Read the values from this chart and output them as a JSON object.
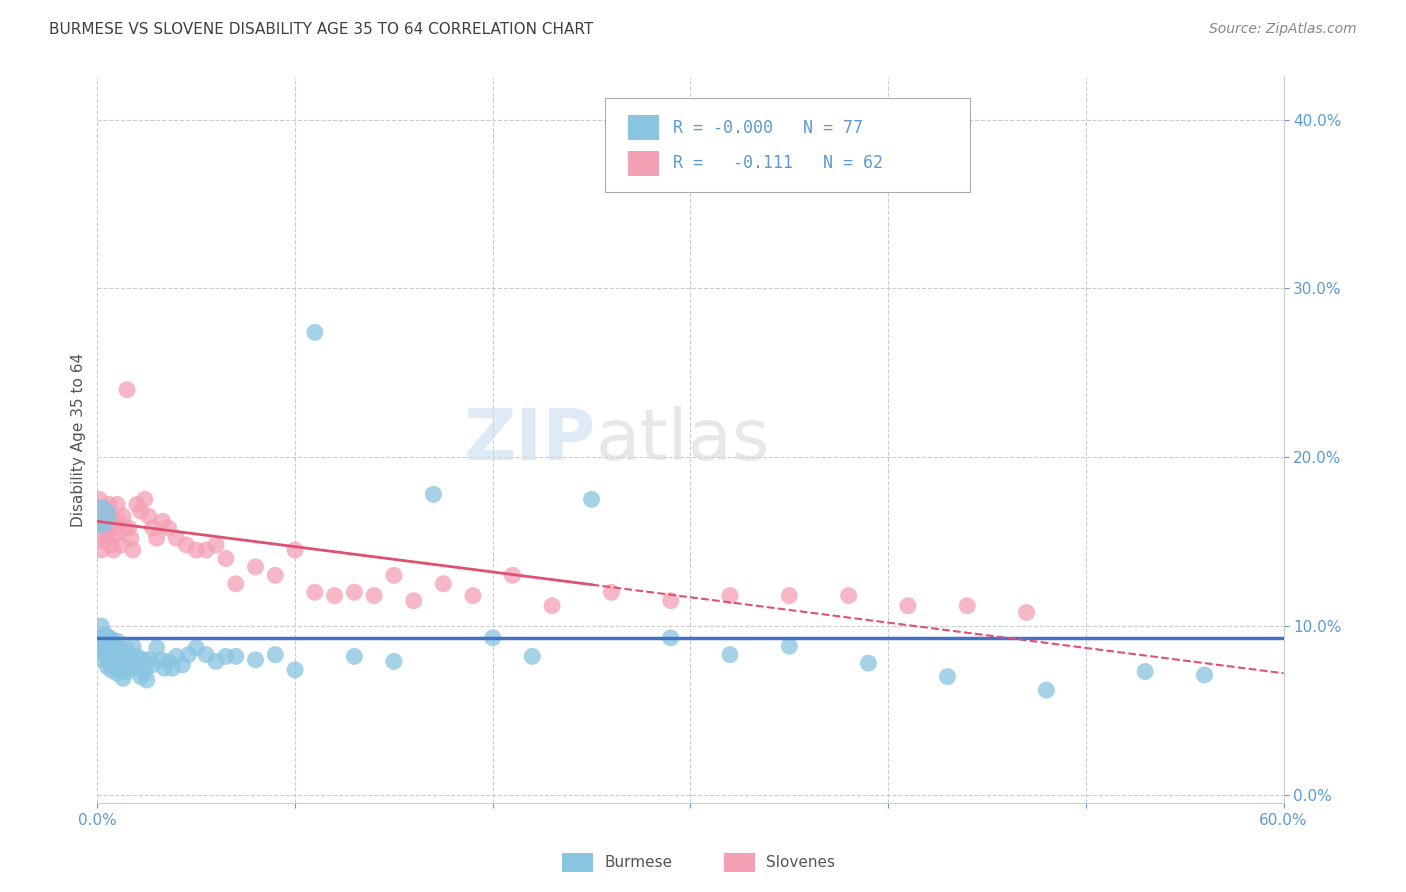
{
  "title": "BURMESE VS SLOVENE DISABILITY AGE 35 TO 64 CORRELATION CHART",
  "source": "Source: ZipAtlas.com",
  "ylabel": "Disability Age 35 to 64",
  "xlim": [
    0.0,
    0.6
  ],
  "ylim": [
    -0.005,
    0.425
  ],
  "xticks": [
    0.0,
    0.1,
    0.2,
    0.3,
    0.4,
    0.5,
    0.6
  ],
  "xticklabels": [
    "0.0%",
    "",
    "",
    "",
    "",
    "",
    "60.0%"
  ],
  "yticks": [
    0.0,
    0.1,
    0.2,
    0.3,
    0.4
  ],
  "yticklabels": [
    "0.0%",
    "10.0%",
    "20.0%",
    "30.0%",
    "40.0%"
  ],
  "burmese_color": "#89c4e1",
  "slovene_color": "#f4a0b5",
  "burmese_line_color": "#4472c4",
  "slovene_line_color": "#e05070",
  "burmese_R": "-0.000",
  "burmese_N": 77,
  "slovene_R": "-0.111",
  "slovene_N": 62,
  "burmese_line_y": 0.093,
  "slovene_line_start_y": 0.162,
  "slovene_line_end_y": 0.072,
  "background_color": "#ffffff",
  "grid_color": "#cccccc",
  "axis_color": "#5b9bd5",
  "title_color": "#404040",
  "watermark": "ZIPatlas",
  "burmese_x": [
    0.001,
    0.002,
    0.002,
    0.003,
    0.003,
    0.003,
    0.004,
    0.004,
    0.005,
    0.005,
    0.005,
    0.006,
    0.006,
    0.006,
    0.007,
    0.007,
    0.007,
    0.008,
    0.008,
    0.009,
    0.009,
    0.01,
    0.01,
    0.01,
    0.011,
    0.011,
    0.012,
    0.012,
    0.013,
    0.013,
    0.014,
    0.015,
    0.015,
    0.016,
    0.017,
    0.018,
    0.019,
    0.02,
    0.021,
    0.022,
    0.023,
    0.024,
    0.025,
    0.026,
    0.028,
    0.03,
    0.032,
    0.034,
    0.036,
    0.038,
    0.04,
    0.043,
    0.046,
    0.05,
    0.055,
    0.06,
    0.065,
    0.07,
    0.08,
    0.09,
    0.1,
    0.11,
    0.13,
    0.15,
    0.17,
    0.2,
    0.22,
    0.25,
    0.29,
    0.32,
    0.35,
    0.39,
    0.43,
    0.48,
    0.53,
    0.56,
    0.001
  ],
  "burmese_y": [
    0.093,
    0.1,
    0.085,
    0.092,
    0.088,
    0.08,
    0.095,
    0.085,
    0.091,
    0.082,
    0.076,
    0.093,
    0.087,
    0.078,
    0.092,
    0.084,
    0.074,
    0.089,
    0.079,
    0.086,
    0.076,
    0.091,
    0.083,
    0.072,
    0.088,
    0.076,
    0.085,
    0.074,
    0.082,
    0.069,
    0.079,
    0.086,
    0.073,
    0.082,
    0.076,
    0.088,
    0.075,
    0.082,
    0.076,
    0.07,
    0.08,
    0.073,
    0.068,
    0.08,
    0.077,
    0.087,
    0.08,
    0.075,
    0.079,
    0.075,
    0.082,
    0.077,
    0.083,
    0.087,
    0.083,
    0.079,
    0.082,
    0.082,
    0.08,
    0.083,
    0.074,
    0.274,
    0.082,
    0.079,
    0.178,
    0.093,
    0.082,
    0.175,
    0.093,
    0.083,
    0.088,
    0.078,
    0.07,
    0.062,
    0.073,
    0.071,
    0.165
  ],
  "slovene_x": [
    0.001,
    0.002,
    0.002,
    0.003,
    0.003,
    0.004,
    0.004,
    0.005,
    0.005,
    0.006,
    0.006,
    0.007,
    0.007,
    0.008,
    0.008,
    0.009,
    0.01,
    0.01,
    0.011,
    0.012,
    0.013,
    0.014,
    0.015,
    0.016,
    0.017,
    0.018,
    0.02,
    0.022,
    0.024,
    0.026,
    0.028,
    0.03,
    0.033,
    0.036,
    0.04,
    0.045,
    0.05,
    0.055,
    0.06,
    0.065,
    0.07,
    0.08,
    0.09,
    0.1,
    0.11,
    0.12,
    0.13,
    0.14,
    0.15,
    0.16,
    0.175,
    0.19,
    0.21,
    0.23,
    0.26,
    0.29,
    0.32,
    0.35,
    0.38,
    0.41,
    0.44,
    0.47
  ],
  "slovene_y": [
    0.175,
    0.16,
    0.145,
    0.17,
    0.155,
    0.165,
    0.15,
    0.168,
    0.153,
    0.172,
    0.158,
    0.165,
    0.148,
    0.162,
    0.145,
    0.158,
    0.172,
    0.155,
    0.162,
    0.148,
    0.165,
    0.158,
    0.24,
    0.158,
    0.152,
    0.145,
    0.172,
    0.168,
    0.175,
    0.165,
    0.158,
    0.152,
    0.162,
    0.158,
    0.152,
    0.148,
    0.145,
    0.145,
    0.148,
    0.14,
    0.125,
    0.135,
    0.13,
    0.145,
    0.12,
    0.118,
    0.12,
    0.118,
    0.13,
    0.115,
    0.125,
    0.118,
    0.13,
    0.112,
    0.12,
    0.115,
    0.118,
    0.118,
    0.118,
    0.112,
    0.112,
    0.108
  ]
}
